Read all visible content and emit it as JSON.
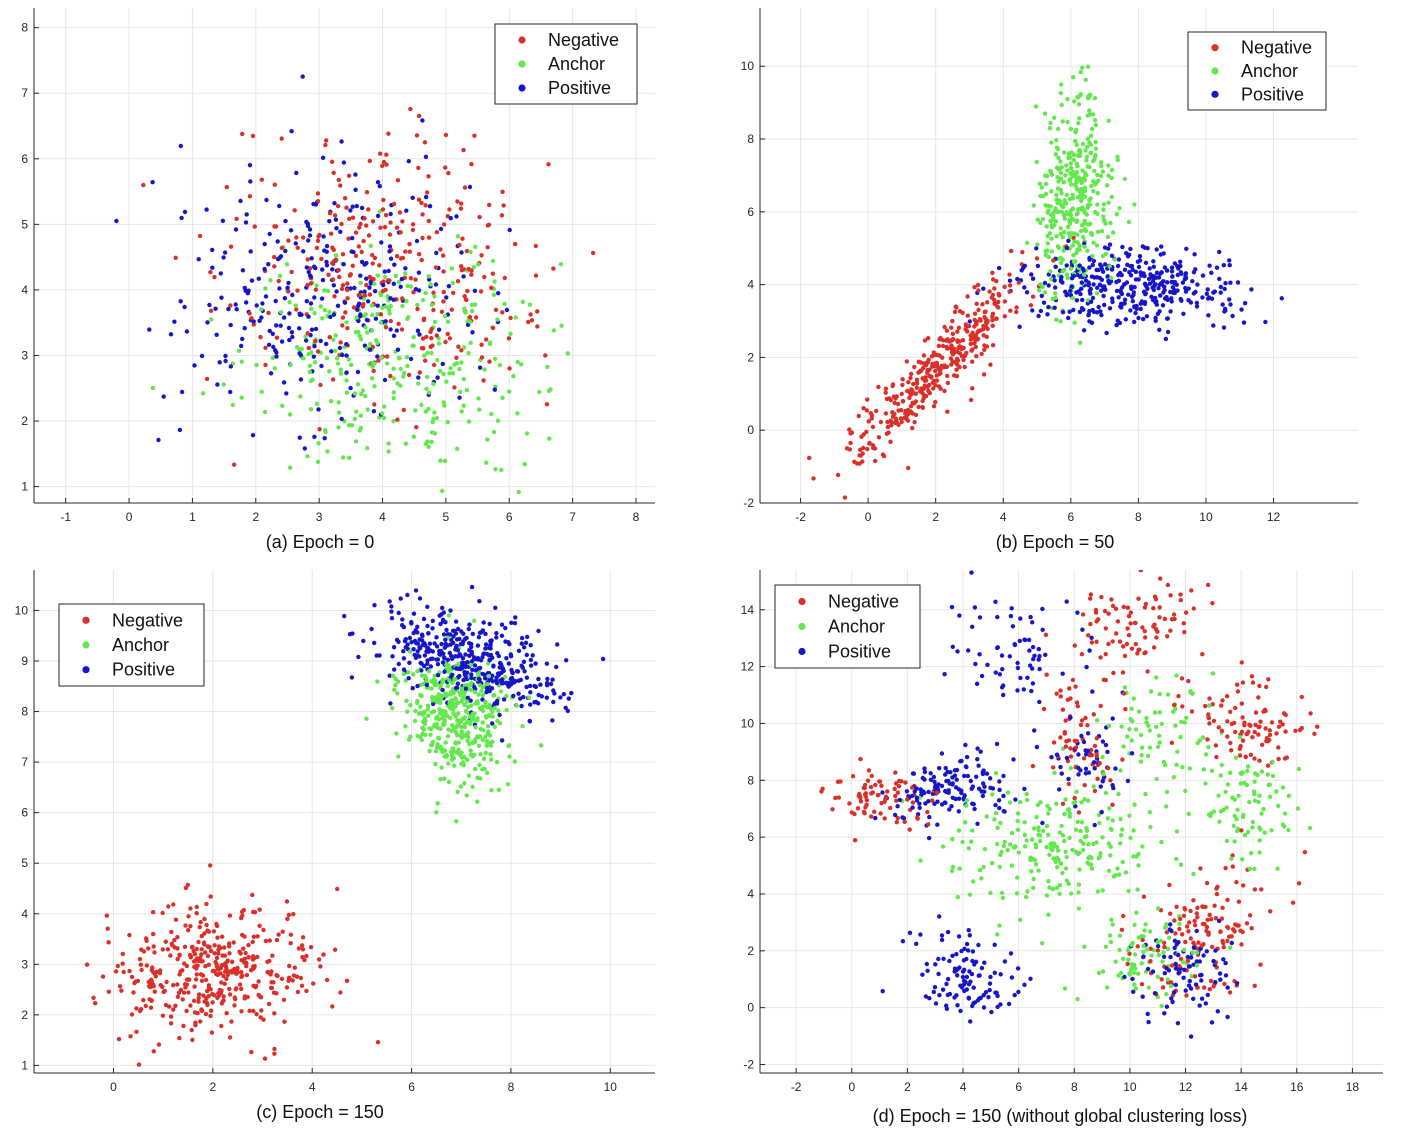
{
  "colors": {
    "negative": "#d9302a",
    "anchor": "#62e84c",
    "positive": "#1616c8",
    "grid": "#e6e6e6",
    "axis": "#262626"
  },
  "chart_data": [
    {
      "type": "scatter",
      "caption": "(a)  Epoch = 0",
      "xlim": [
        -1.5,
        8.3
      ],
      "ylim": [
        0.75,
        8.3
      ],
      "xticks": [
        "-1",
        "0",
        "1",
        "2",
        "3",
        "4",
        "5",
        "6",
        "7",
        "8"
      ],
      "yticks": [
        "1",
        "2",
        "3",
        "4",
        "5",
        "6",
        "7",
        "8"
      ],
      "legend": [
        "Negative",
        "Anchor",
        "Positive"
      ],
      "legend_position": "top-right",
      "series": [
        {
          "name": "Negative",
          "clusters": [
            {
              "center": [
                4.0,
                4.2
              ],
              "sd": [
                1.2,
                1.0
              ],
              "corr": 0.0,
              "n": 320
            }
          ]
        },
        {
          "name": "Anchor",
          "clusters": [
            {
              "center": [
                4.2,
                2.9
              ],
              "sd": [
                1.2,
                0.9
              ],
              "corr": 0.0,
              "n": 320
            }
          ]
        },
        {
          "name": "Positive",
          "clusters": [
            {
              "center": [
                3.1,
                4.0
              ],
              "sd": [
                1.1,
                1.0
              ],
              "corr": 0.0,
              "n": 320
            }
          ]
        }
      ]
    },
    {
      "type": "scatter",
      "caption": "(b)  Epoch = 50",
      "xlim": [
        -3.2,
        14.5
      ],
      "ylim": [
        -2.0,
        11.6
      ],
      "xticks": [
        "-2",
        "0",
        "2",
        "4",
        "6",
        "8",
        "10",
        "12"
      ],
      "yticks": [
        "-2",
        "0",
        "2",
        "4",
        "6",
        "8",
        "10"
      ],
      "legend": [
        "Negative",
        "Anchor",
        "Positive"
      ],
      "legend_position": "top-right",
      "series": [
        {
          "name": "Negative",
          "clusters": [
            {
              "center": [
                2.0,
                1.7
              ],
              "sd": [
                1.3,
                1.3
              ],
              "corr": 0.92,
              "n": 380
            }
          ]
        },
        {
          "name": "Anchor",
          "clusters": [
            {
              "center": [
                6.1,
                6.3
              ],
              "sd": [
                0.55,
                1.4
              ],
              "corr": 0.1,
              "n": 380
            }
          ]
        },
        {
          "name": "Positive",
          "clusters": [
            {
              "center": [
                7.6,
                4.0
              ],
              "sd": [
                1.6,
                0.55
              ],
              "corr": -0.05,
              "n": 380
            }
          ]
        }
      ]
    },
    {
      "type": "scatter",
      "caption": "(c)  Epoch = 150",
      "xlim": [
        -1.6,
        10.9
      ],
      "ylim": [
        0.85,
        10.8
      ],
      "xticks": [
        "0",
        "2",
        "4",
        "6",
        "8",
        "10"
      ],
      "yticks": [
        "1",
        "2",
        "3",
        "4",
        "5",
        "6",
        "7",
        "8",
        "9",
        "10"
      ],
      "legend": [
        "Negative",
        "Anchor",
        "Positive"
      ],
      "legend_position": "top-left",
      "series": [
        {
          "name": "Negative",
          "clusters": [
            {
              "center": [
                2.1,
                2.9
              ],
              "sd": [
                1.0,
                0.65
              ],
              "corr": 0.05,
              "n": 420
            }
          ]
        },
        {
          "name": "Anchor",
          "clusters": [
            {
              "center": [
                6.9,
                7.9
              ],
              "sd": [
                0.55,
                0.6
              ],
              "corr": -0.2,
              "n": 420
            }
          ]
        },
        {
          "name": "Positive",
          "clusters": [
            {
              "center": [
                7.1,
                9.0
              ],
              "sd": [
                0.9,
                0.55
              ],
              "corr": -0.45,
              "n": 420
            }
          ]
        }
      ]
    },
    {
      "type": "scatter",
      "caption": "(d)  Epoch = 150 (without global clustering loss)",
      "xlim": [
        -3.3,
        19.1
      ],
      "ylim": [
        -2.3,
        15.4
      ],
      "xticks": [
        "-2",
        "0",
        "2",
        "4",
        "6",
        "8",
        "10",
        "12",
        "14",
        "16",
        "18"
      ],
      "yticks": [
        "-2",
        "0",
        "2",
        "4",
        "6",
        "8",
        "10",
        "12",
        "14"
      ],
      "legend": [
        "Negative",
        "Anchor",
        "Positive"
      ],
      "legend_position": "top-left",
      "series": [
        {
          "name": "Negative",
          "clusters": [
            {
              "center": [
                10.3,
                13.5
              ],
              "sd": [
                1.1,
                0.9
              ],
              "corr": 0.1,
              "n": 90
            },
            {
              "center": [
                14.3,
                10.0
              ],
              "sd": [
                1.3,
                0.8
              ],
              "corr": 0.0,
              "n": 100
            },
            {
              "center": [
                8.1,
                9.5
              ],
              "sd": [
                0.7,
                0.9
              ],
              "corr": 0.0,
              "n": 70
            },
            {
              "center": [
                1.2,
                7.4
              ],
              "sd": [
                1.0,
                0.6
              ],
              "corr": 0.0,
              "n": 80
            },
            {
              "center": [
                12.6,
                2.6
              ],
              "sd": [
                1.2,
                1.2
              ],
              "corr": 0.4,
              "n": 140
            }
          ]
        },
        {
          "name": "Anchor",
          "clusters": [
            {
              "center": [
                7.3,
                5.7
              ],
              "sd": [
                2.0,
                1.2
              ],
              "corr": 0.0,
              "n": 230
            },
            {
              "center": [
                11.0,
                9.7
              ],
              "sd": [
                1.1,
                1.0
              ],
              "corr": 0.0,
              "n": 70
            },
            {
              "center": [
                14.3,
                7.2
              ],
              "sd": [
                1.0,
                0.9
              ],
              "corr": 0.0,
              "n": 90
            },
            {
              "center": [
                10.6,
                1.9
              ],
              "sd": [
                1.0,
                0.8
              ],
              "corr": 0.0,
              "n": 80
            }
          ]
        },
        {
          "name": "Positive",
          "clusters": [
            {
              "center": [
                5.9,
                12.3
              ],
              "sd": [
                1.1,
                1.1
              ],
              "corr": 0.0,
              "n": 70
            },
            {
              "center": [
                3.5,
                7.7
              ],
              "sd": [
                1.1,
                0.6
              ],
              "corr": 0.0,
              "n": 140
            },
            {
              "center": [
                8.6,
                8.6
              ],
              "sd": [
                0.6,
                1.0
              ],
              "corr": 0.0,
              "n": 50
            },
            {
              "center": [
                4.0,
                0.9
              ],
              "sd": [
                1.0,
                0.9
              ],
              "corr": 0.0,
              "n": 110
            },
            {
              "center": [
                11.9,
                1.3
              ],
              "sd": [
                1.0,
                0.9
              ],
              "corr": 0.0,
              "n": 90
            }
          ]
        }
      ]
    }
  ]
}
